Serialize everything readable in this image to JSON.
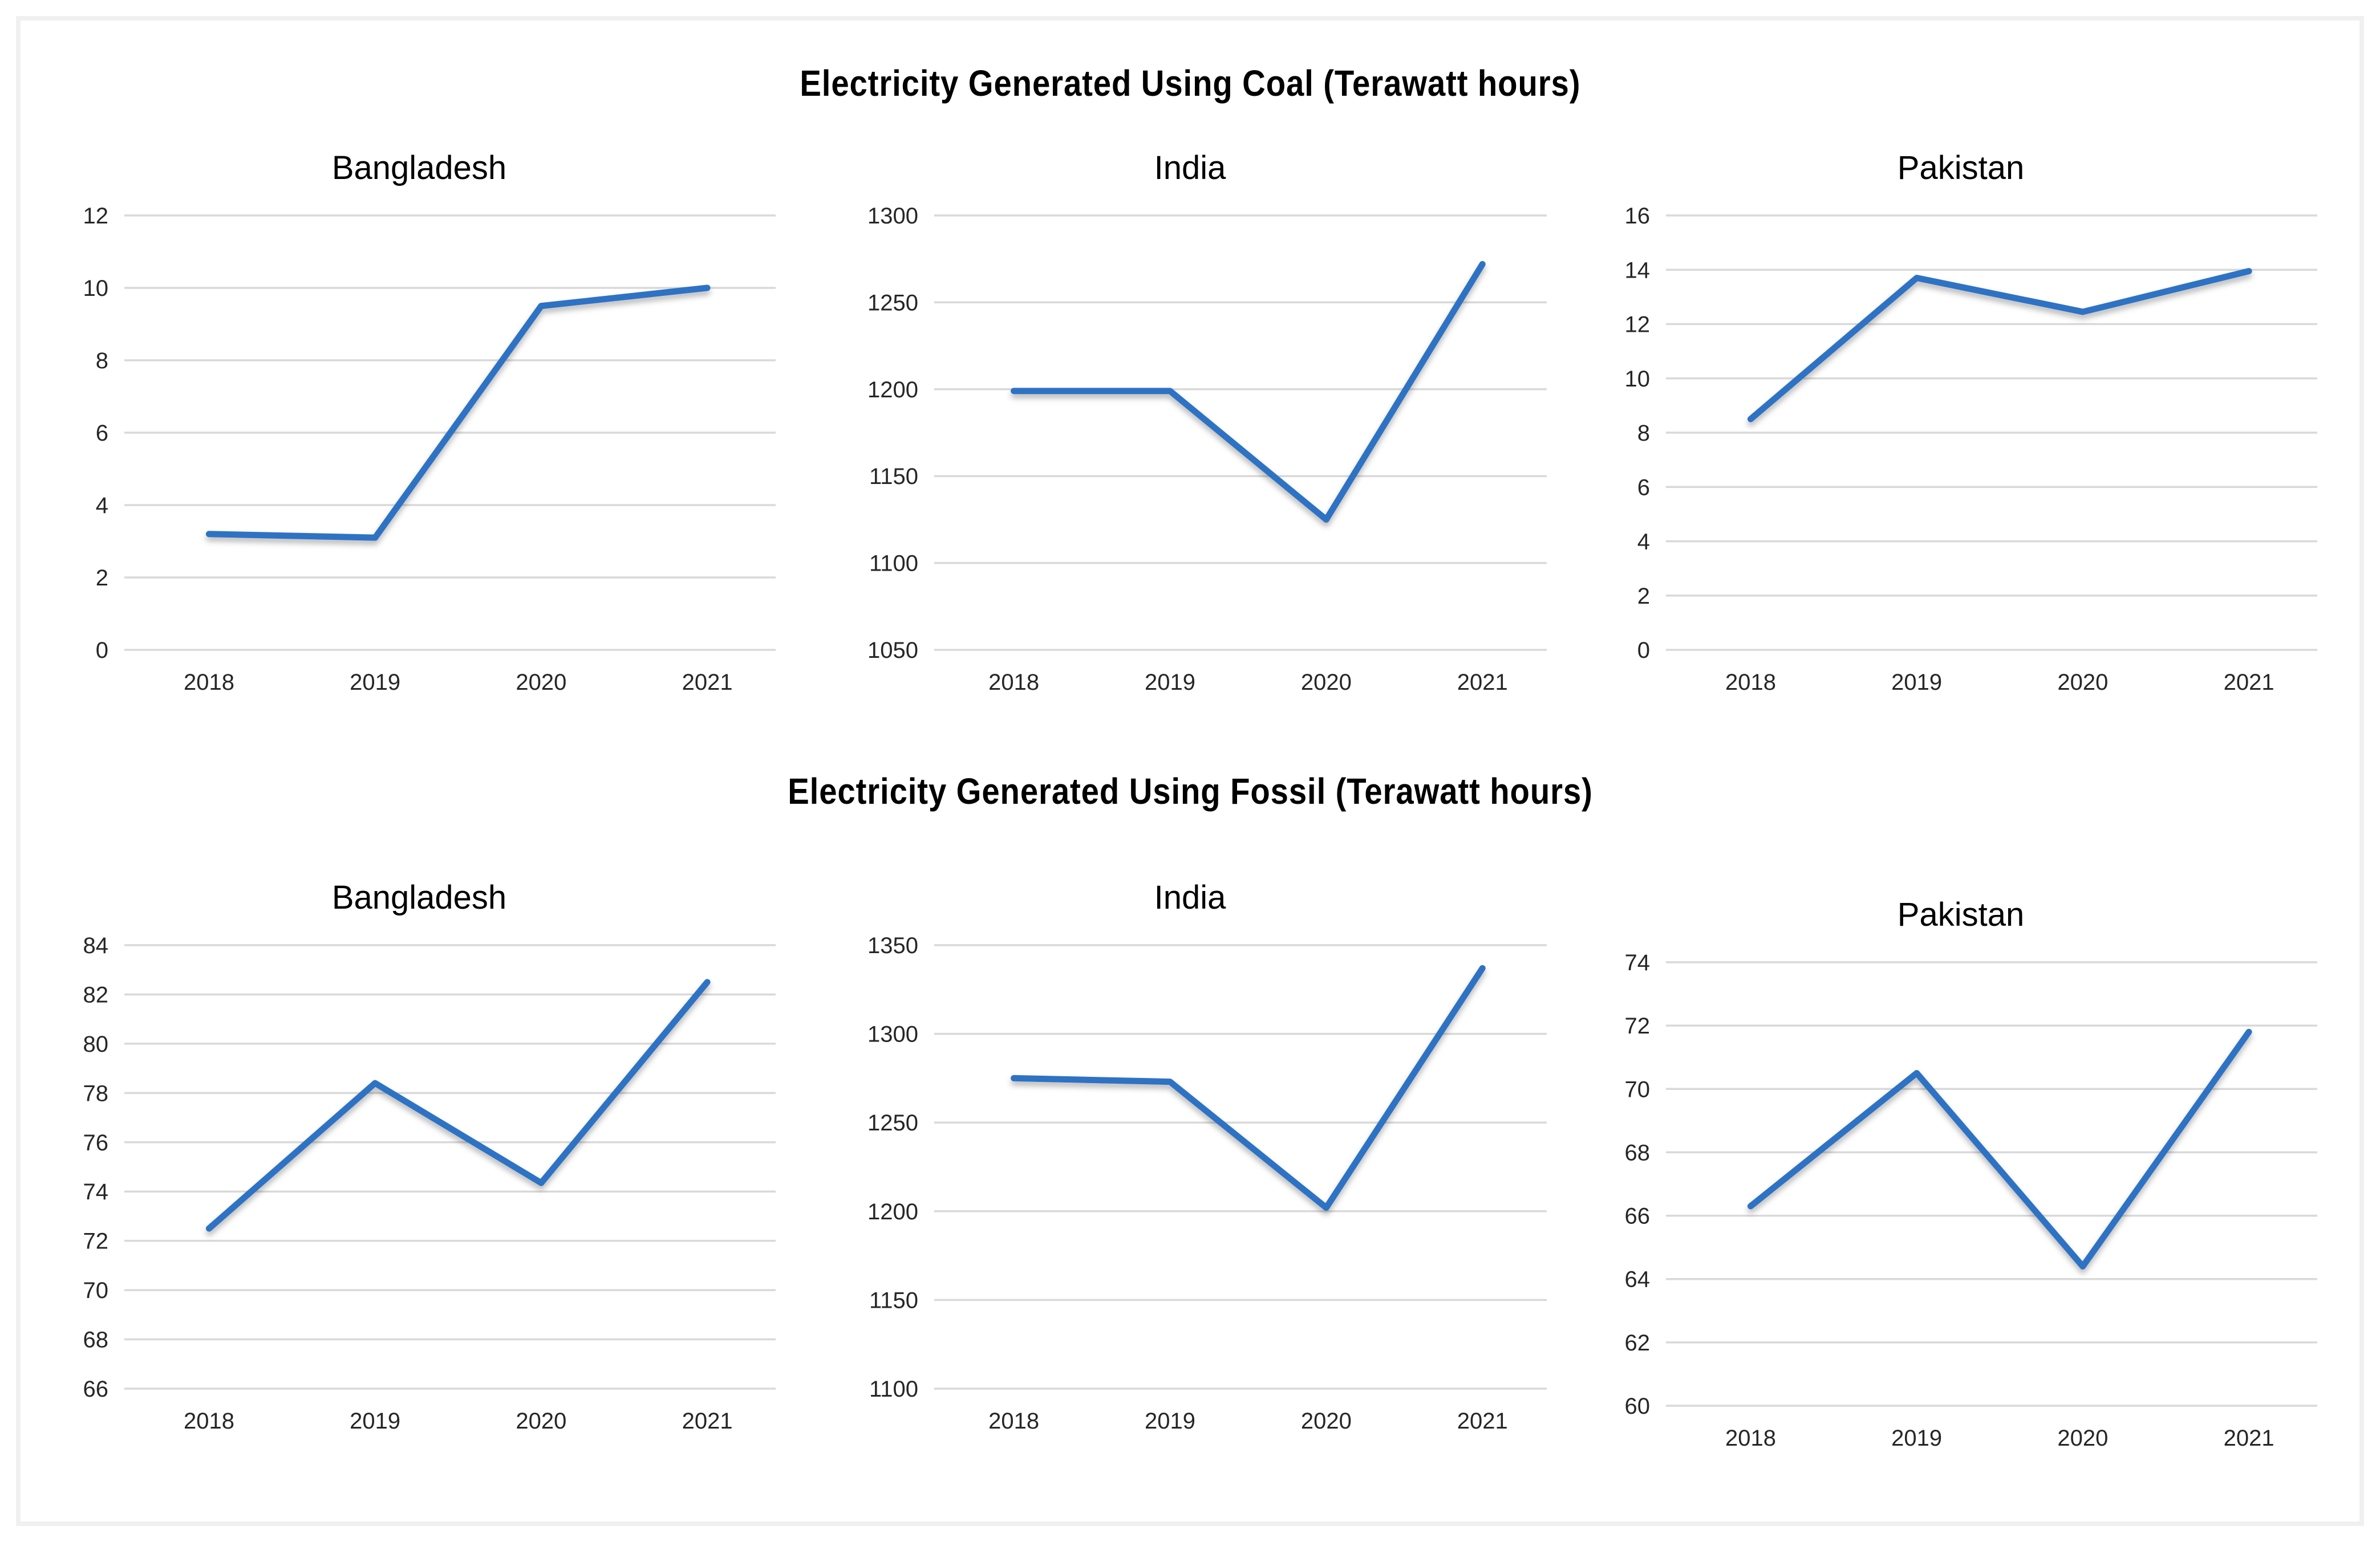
{
  "page": {
    "background": "#ffffff",
    "border_color": "#f0f0f0"
  },
  "colors": {
    "line": "#2d72c4",
    "grid": "#d9d9d9",
    "tick_text": "#262626",
    "title_text": "#000000"
  },
  "chart_data": [
    {
      "type": "line",
      "title": "Electricity Generated Using Coal (Terawatt hours)",
      "x": [
        "2018",
        "2019",
        "2020",
        "2021"
      ],
      "grid": true,
      "legend": "none",
      "charts": [
        {
          "title": "Bangladesh",
          "values": [
            3.2,
            3.1,
            9.5,
            10
          ],
          "ylim": [
            0,
            12
          ],
          "ystep": 2
        },
        {
          "title": "India",
          "values": [
            1199,
            1199,
            1125,
            1272
          ],
          "ylim": [
            1050,
            1300
          ],
          "ystep": 50
        },
        {
          "title": "Pakistan",
          "values": [
            8.5,
            13.7,
            12.45,
            13.95
          ],
          "ylim": [
            0,
            16
          ],
          "ystep": 2
        }
      ]
    },
    {
      "type": "line",
      "title": "Electricity Generated Using Fossil (Terawatt hours)",
      "x": [
        "2018",
        "2019",
        "2020",
        "2021"
      ],
      "grid": true,
      "legend": "none",
      "charts": [
        {
          "title": "Bangladesh",
          "values": [
            72.5,
            78.4,
            74.35,
            82.5
          ],
          "ylim": [
            66,
            84
          ],
          "ystep": 2
        },
        {
          "title": "India",
          "values": [
            1275,
            1273,
            1202,
            1337
          ],
          "ylim": [
            1100,
            1350
          ],
          "ystep": 50
        },
        {
          "title": "Pakistan",
          "values": [
            66.3,
            70.5,
            64.4,
            71.8
          ],
          "ylim": [
            60,
            74
          ],
          "ystep": 2
        }
      ]
    }
  ]
}
